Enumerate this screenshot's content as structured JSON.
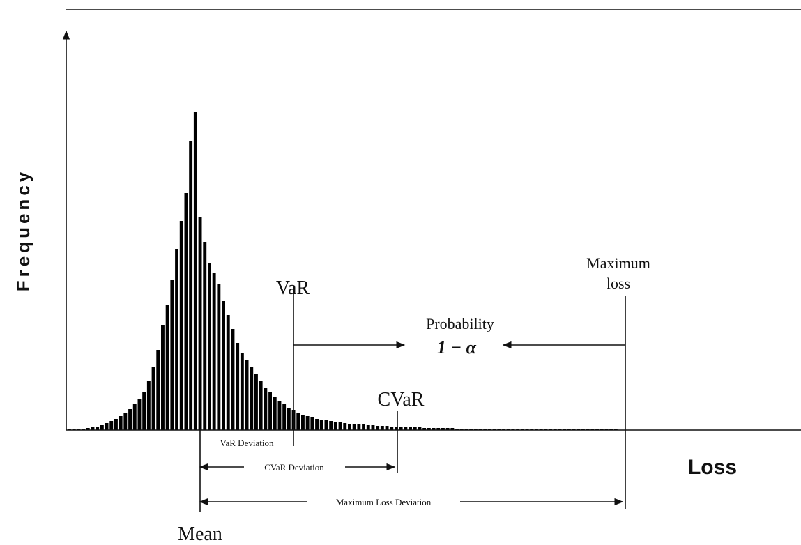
{
  "y_label": "Frequency",
  "x_label": "Loss",
  "annotations": {
    "var": "VaR",
    "probability": "Probability",
    "one_minus_alpha": "1 − α",
    "maximum": "Maximum",
    "loss": "loss",
    "cvar": "CVaR",
    "var_deviation": "VaR Deviation",
    "cvar_deviation": "CVaR Deviation",
    "max_loss_deviation": "Maximum Loss Deviation",
    "mean": "Mean"
  },
  "histogram": {
    "values": [
      1,
      1,
      2,
      2,
      3,
      4,
      5,
      7,
      10,
      13,
      16,
      20,
      25,
      30,
      38,
      45,
      55,
      70,
      90,
      115,
      150,
      180,
      215,
      260,
      300,
      340,
      415,
      457,
      305,
      270,
      240,
      225,
      210,
      185,
      165,
      145,
      125,
      110,
      100,
      90,
      80,
      70,
      60,
      55,
      48,
      42,
      37,
      32,
      28,
      25,
      22,
      20,
      18,
      16,
      15,
      14,
      13,
      12,
      11,
      10,
      9,
      9,
      8,
      8,
      7,
      7,
      6,
      6,
      6,
      5,
      5,
      5,
      4,
      4,
      4,
      4,
      3,
      3,
      3,
      3,
      3,
      3,
      3,
      2,
      2,
      2,
      2,
      2,
      2,
      2,
      2,
      2,
      2,
      2,
      2,
      2,
      1,
      1,
      1,
      1,
      1,
      1,
      1,
      1,
      1,
      1,
      1,
      1,
      1,
      1,
      1,
      1,
      1,
      1,
      1,
      1,
      1,
      1
    ]
  }
}
